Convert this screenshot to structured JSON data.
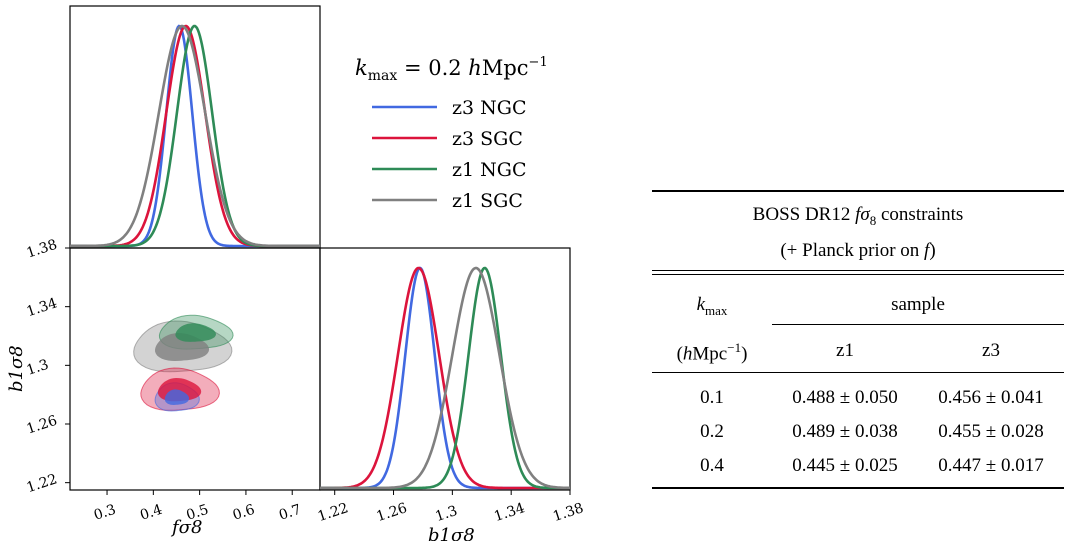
{
  "legend": {
    "title_pre": "k",
    "title_sub": "max",
    "title_post": " = 0.2 ",
    "title_unit_h": "h",
    "title_unit": "Mpc",
    "title_exp": "−1",
    "entries": [
      {
        "label": "z3 NGC",
        "color": "#4169e1"
      },
      {
        "label": "z3 SGC",
        "color": "#dc143c"
      },
      {
        "label": "z1 NGC",
        "color": "#2e8b57"
      },
      {
        "label": "z1 SGC",
        "color": "#808080"
      }
    ]
  },
  "chart_data": [
    {
      "type": "line",
      "panel": "fσ8 marginal",
      "xlabel": "fσ8",
      "xlim": [
        0.22,
        0.76
      ],
      "series": [
        {
          "name": "z3 NGC",
          "color": "#4169e1",
          "mean": 0.456,
          "sigma": 0.028
        },
        {
          "name": "z3 SGC",
          "color": "#dc143c",
          "mean": 0.47,
          "sigma": 0.042
        },
        {
          "name": "z1 NGC",
          "color": "#2e8b57",
          "mean": 0.489,
          "sigma": 0.038
        },
        {
          "name": "z1 SGC",
          "color": "#808080",
          "mean": 0.462,
          "sigma": 0.05
        }
      ]
    },
    {
      "type": "contour",
      "panel": "fσ8 vs b1σ8",
      "xlabel": "fσ8",
      "ylabel": "b1σ8",
      "xlim": [
        0.22,
        0.76
      ],
      "ylim": [
        1.215,
        1.38
      ],
      "xticks": [
        "0.3",
        "0.4",
        "0.5",
        "0.6",
        "0.7"
      ],
      "yticks": [
        "1.22",
        "1.26",
        "1.3",
        "1.34",
        "1.38"
      ],
      "series": [
        {
          "name": "z1 SGC",
          "color": "#808080",
          "center": [
            0.46,
            1.312
          ],
          "size": [
            0.1,
            0.018
          ]
        },
        {
          "name": "z1 NGC",
          "color": "#2e8b57",
          "center": [
            0.49,
            1.322
          ],
          "size": [
            0.075,
            0.012
          ]
        },
        {
          "name": "z3 SGC",
          "color": "#dc143c",
          "center": [
            0.455,
            1.283
          ],
          "size": [
            0.08,
            0.015
          ]
        },
        {
          "name": "z3 NGC",
          "color": "#4169e1",
          "center": [
            0.45,
            1.278
          ],
          "size": [
            0.045,
            0.01
          ]
        }
      ]
    },
    {
      "type": "line",
      "panel": "b1σ8 marginal",
      "xlabel": "b1σ8",
      "xlim": [
        1.21,
        1.38
      ],
      "xticks": [
        "1.22",
        "1.26",
        "1.3",
        "1.34",
        "1.38"
      ],
      "series": [
        {
          "name": "z3 NGC",
          "color": "#4169e1",
          "mean": 1.278,
          "sigma": 0.01
        },
        {
          "name": "z3 SGC",
          "color": "#dc143c",
          "mean": 1.277,
          "sigma": 0.014
        },
        {
          "name": "z1 NGC",
          "color": "#2e8b57",
          "mean": 1.322,
          "sigma": 0.011
        },
        {
          "name": "z1 SGC",
          "color": "#808080",
          "mean": 1.316,
          "sigma": 0.016
        }
      ]
    }
  ],
  "table": {
    "title_pre": "BOSS DR12 ",
    "title_f": "f",
    "title_sigma": "σ",
    "title_sub": "8",
    "title_post": " constraints",
    "subtitle_pre": "(+ Planck prior on ",
    "subtitle_f": "f",
    "subtitle_post": ")",
    "kmax_k": "k",
    "kmax_sub": "max",
    "unit_pre": "(",
    "unit_h": "h",
    "unit_mid": "Mpc",
    "unit_exp": "−1",
    "unit_post": ")",
    "sample_header": "sample",
    "col_z1": "z1",
    "col_z3": "z3",
    "rows": [
      {
        "kmax": "0.1",
        "z1": "0.488 ± 0.050",
        "z3": "0.456 ± 0.041"
      },
      {
        "kmax": "0.2",
        "z1": "0.489 ± 0.038",
        "z3": "0.455 ± 0.028"
      },
      {
        "kmax": "0.4",
        "z1": "0.445 ± 0.025",
        "z3": "0.447 ± 0.017"
      }
    ]
  }
}
